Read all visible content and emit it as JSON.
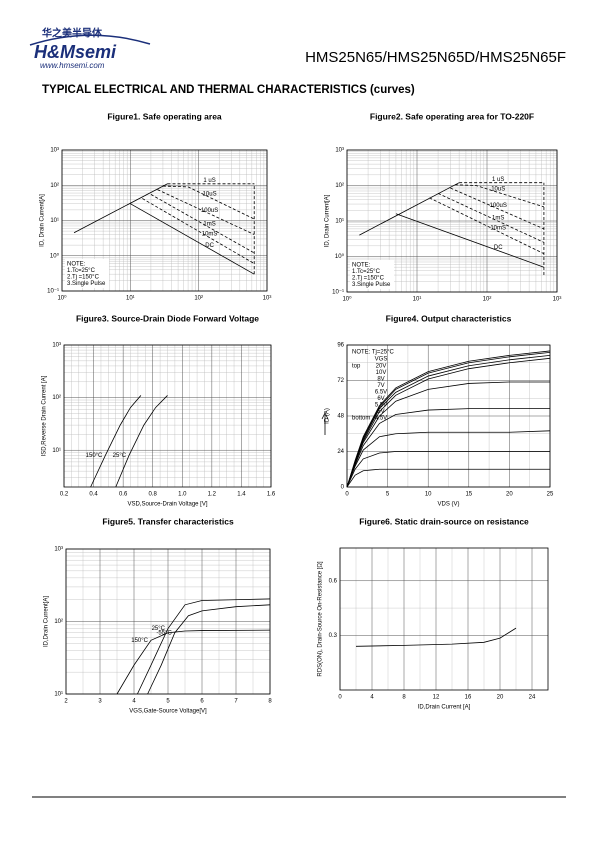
{
  "header": {
    "logo_cn": "华之美半导体",
    "logo": "H&Msemi",
    "website": "www.hmsemi.com",
    "title": "HMS25N65/HMS25N65D/HMS25N65F"
  },
  "section_title": "TYPICAL ELECTRICAL AND THERMAL CHARACTERISTICS (curves)",
  "figures": [
    {
      "title": "Figure1. Safe operating area",
      "type": "line",
      "ylabel": "ID, Drain Current[A]",
      "xlog": true,
      "ylog": true,
      "grid": true,
      "xlim": [
        1,
        1000
      ],
      "ylim": [
        0.1,
        1000
      ],
      "xticks": [
        {
          "value": 1,
          "label": "10⁰"
        },
        {
          "value": 10,
          "label": "10¹"
        },
        {
          "value": 100,
          "label": "10²"
        },
        {
          "value": 1000,
          "label": "10³"
        }
      ],
      "yticks": [
        {
          "value": 0.1,
          "label": "10⁻¹"
        },
        {
          "value": 1,
          "label": "10⁰"
        },
        {
          "value": 10,
          "label": "10¹"
        },
        {
          "value": 100,
          "label": "10²"
        },
        {
          "value": 1000,
          "label": "10³"
        }
      ],
      "series": [
        {
          "x": [
            1.5,
            35
          ],
          "values": [
            4.5,
            110
          ]
        },
        {
          "name": "1 uS",
          "dashed": true,
          "x": [
            35,
            650
          ],
          "values": [
            110,
            110
          ]
        },
        {
          "name": "10uS",
          "dashed": true,
          "x": [
            30,
            70,
            650
          ],
          "values": [
            95,
            90,
            11
          ]
        },
        {
          "name": "100uS",
          "dashed": true,
          "x": [
            25,
            650
          ],
          "values": [
            75,
            4
          ]
        },
        {
          "name": "1mS",
          "dashed": true,
          "x": [
            20,
            650
          ],
          "values": [
            55,
            1.2
          ]
        },
        {
          "name": "10mS",
          "dashed": true,
          "x": [
            15,
            650
          ],
          "values": [
            42,
            0.6
          ]
        },
        {
          "name": "DC",
          "x": [
            10,
            650
          ],
          "values": [
            30,
            0.3
          ]
        },
        {
          "dashed": true,
          "x": [
            650,
            650
          ],
          "values": [
            0.3,
            110
          ]
        }
      ],
      "notes": [
        "NOTE:",
        "1.Tc=25°C",
        "2.Tj =150°C",
        "3.Single Pulse"
      ]
    },
    {
      "title": "Figure2. Safe operating area for TO-220F",
      "type": "line",
      "ylabel": "ID, Drain Current[A]",
      "xlog": true,
      "ylog": true,
      "grid": true,
      "xlim": [
        1,
        1000
      ],
      "ylim": [
        0.1,
        1000
      ],
      "xticks": [
        {
          "value": 1,
          "label": "10⁰"
        },
        {
          "value": 10,
          "label": "10¹"
        },
        {
          "value": 100,
          "label": "10²"
        },
        {
          "value": 1000,
          "label": "10³"
        }
      ],
      "yticks": [
        {
          "value": 0.1,
          "label": "10⁻¹"
        },
        {
          "value": 1,
          "label": "10⁰"
        },
        {
          "value": 10,
          "label": "10¹"
        },
        {
          "value": 100,
          "label": "10²"
        },
        {
          "value": 1000,
          "label": "10³"
        }
      ],
      "series": [
        {
          "x": [
            1.5,
            40
          ],
          "values": [
            4,
            120
          ]
        },
        {
          "name": "1 uS",
          "dashed": true,
          "x": [
            40,
            650
          ],
          "values": [
            120,
            120
          ]
        },
        {
          "name": "10uS",
          "dashed": true,
          "x": [
            35,
            70,
            650
          ],
          "values": [
            105,
            100,
            25
          ]
        },
        {
          "name": "100uS",
          "dashed": true,
          "x": [
            30,
            650
          ],
          "values": [
            85,
            6
          ]
        },
        {
          "name": "1mS",
          "dashed": true,
          "x": [
            20,
            650
          ],
          "values": [
            60,
            2.5
          ]
        },
        {
          "name": "10mS",
          "dashed": true,
          "x": [
            15,
            650
          ],
          "values": [
            45,
            1.2
          ]
        },
        {
          "name": "DC",
          "x": [
            5,
            650
          ],
          "values": [
            16,
            0.5
          ]
        },
        {
          "dashed": true,
          "x": [
            650,
            650
          ],
          "values": [
            0.3,
            120
          ]
        }
      ],
      "notes": [
        "NOTE:",
        "1.Tc=25°C",
        "2.Tj =150°C",
        "3.Single Pulse"
      ]
    },
    {
      "title": "Figure3. Source-Drain Diode Forward Voltage",
      "type": "line",
      "ylabel": "ISD,Reverse Drain Current  [A]",
      "xlabel": "VSD,Source-Drain Voltage  [V]",
      "xlog": false,
      "ylog": true,
      "grid": true,
      "minor": 4,
      "xlim": [
        0.2,
        1.6
      ],
      "ylim": [
        2,
        1000
      ],
      "xticks": [
        0.2,
        0.4,
        0.6,
        0.8,
        {
          "value": 1,
          "label": "1.0"
        },
        1.2,
        1.4,
        1.6
      ],
      "yticks": [
        {
          "value": 10,
          "label": "10¹"
        },
        {
          "value": 100,
          "label": "10²"
        },
        {
          "value": 1000,
          "label": "10³"
        }
      ],
      "series": [
        {
          "name": "150°C",
          "x": [
            0.38,
            0.48,
            0.58,
            0.65,
            0.72
          ],
          "values": [
            2,
            8,
            30,
            65,
            110
          ]
        },
        {
          "name": "25°C",
          "x": [
            0.55,
            0.64,
            0.74,
            0.82,
            0.9
          ],
          "values": [
            2,
            8,
            30,
            65,
            110
          ]
        }
      ]
    },
    {
      "title": "Figure4. Output characteristics",
      "type": "line",
      "ylabel": "ID (A)",
      "xlabel": "VDS (V)",
      "xlog": false,
      "ylog": false,
      "grid": true,
      "minor": 2,
      "xlim": [
        0,
        25
      ],
      "ylim": [
        0,
        96
      ],
      "xticks": [
        0,
        5,
        10,
        15,
        20,
        25
      ],
      "yticks": [
        0,
        24,
        48,
        72,
        96
      ],
      "notes": [
        "NOTE:  Tj=25°C"
      ],
      "legend_title": "VGS",
      "legend_top": "top",
      "legend_bottom": "bottom",
      "series": [
        {
          "name": "20V",
          "x": [
            0,
            1,
            2,
            4,
            6,
            10,
            15,
            20,
            25
          ],
          "values": [
            0,
            18,
            34,
            55,
            67,
            78,
            85,
            89,
            92
          ]
        },
        {
          "name": "10V",
          "x": [
            0,
            1,
            2,
            4,
            6,
            10,
            15,
            20,
            25
          ],
          "values": [
            0,
            17,
            33,
            54,
            66,
            77,
            84,
            88,
            91
          ]
        },
        {
          "name": "8V",
          "x": [
            0,
            1,
            2,
            4,
            6,
            10,
            15,
            20,
            25
          ],
          "values": [
            0,
            17,
            32,
            53,
            64,
            75,
            82,
            86,
            89
          ]
        },
        {
          "name": "7V",
          "x": [
            0,
            1,
            2,
            4,
            6,
            10,
            15,
            20,
            25
          ],
          "values": [
            0,
            16,
            31,
            51,
            62,
            73,
            80,
            84,
            87
          ]
        },
        {
          "name": "6.5V",
          "x": [
            0,
            1,
            2,
            4,
            6,
            10,
            15,
            20,
            25
          ],
          "values": [
            0,
            16,
            30,
            48,
            58,
            66,
            70,
            71,
            71
          ]
        },
        {
          "name": "6V",
          "x": [
            0,
            1,
            2,
            4,
            6,
            10,
            15,
            20,
            25
          ],
          "values": [
            0,
            15,
            28,
            43,
            49,
            52,
            53,
            53,
            53
          ]
        },
        {
          "name": "5.5V",
          "x": [
            0,
            1,
            2,
            4,
            6,
            10,
            15,
            20,
            25
          ],
          "values": [
            0,
            14,
            25,
            34,
            36,
            37,
            37,
            37,
            38
          ]
        },
        {
          "name": "5V",
          "x": [
            0,
            1,
            2,
            4,
            6,
            10,
            15,
            20,
            25
          ],
          "values": [
            0,
            12,
            19,
            23,
            24,
            24,
            24,
            24,
            24
          ]
        },
        {
          "name": "4.5V",
          "x": [
            0,
            1,
            2,
            4,
            6,
            10,
            15,
            20,
            25
          ],
          "values": [
            0,
            8,
            11,
            12,
            12,
            12,
            12,
            12,
            12
          ]
        }
      ]
    },
    {
      "title": "Figure5. Transfer characteristics",
      "type": "line",
      "ylabel": "ID,Drain Current[A]",
      "xlabel": "VGS,Gate-Source Voltage[V]",
      "xlog": false,
      "ylog": true,
      "grid": true,
      "minor": 2,
      "xlim": [
        2,
        8
      ],
      "ylim": [
        10,
        1000
      ],
      "xticks": [
        2,
        3,
        4,
        5,
        6,
        7,
        8
      ],
      "yticks": [
        {
          "value": 10,
          "label": "10¹"
        },
        {
          "value": 100,
          "label": "10²"
        },
        {
          "value": 1000,
          "label": "10³"
        }
      ],
      "series": [
        {
          "name": "150°C",
          "x": [
            3.5,
            4,
            4.5,
            5,
            5.5,
            6,
            8
          ],
          "values": [
            10,
            25,
            55,
            70,
            74,
            75,
            76
          ]
        },
        {
          "name": "25°C",
          "x": [
            4.1,
            4.5,
            5,
            5.5,
            6,
            8
          ],
          "values": [
            10,
            25,
            80,
            170,
            195,
            205
          ]
        },
        {
          "name": "-55°C",
          "x": [
            4.4,
            4.8,
            5.2,
            5.6,
            6,
            7,
            8
          ],
          "values": [
            10,
            25,
            70,
            120,
            140,
            160,
            170
          ]
        }
      ]
    },
    {
      "title": "Figure6. Static drain-source on resistance",
      "type": "line",
      "ylabel": "RDS(ON), Drain-Source On-Resistance [Ω]",
      "xlabel": "ID,Drain Current [A]",
      "xlog": false,
      "ylog": false,
      "grid": true,
      "minor": 2,
      "xlim": [
        0,
        26
      ],
      "ylim": [
        0,
        0.78
      ],
      "xticks": [
        0,
        4,
        8,
        12,
        16,
        20,
        24
      ],
      "yticks": [
        0.3,
        0.6
      ],
      "series": [
        {
          "x": [
            2,
            8,
            14,
            18,
            20,
            22
          ],
          "values": [
            0.24,
            0.245,
            0.252,
            0.262,
            0.285,
            0.34
          ]
        }
      ]
    }
  ]
}
